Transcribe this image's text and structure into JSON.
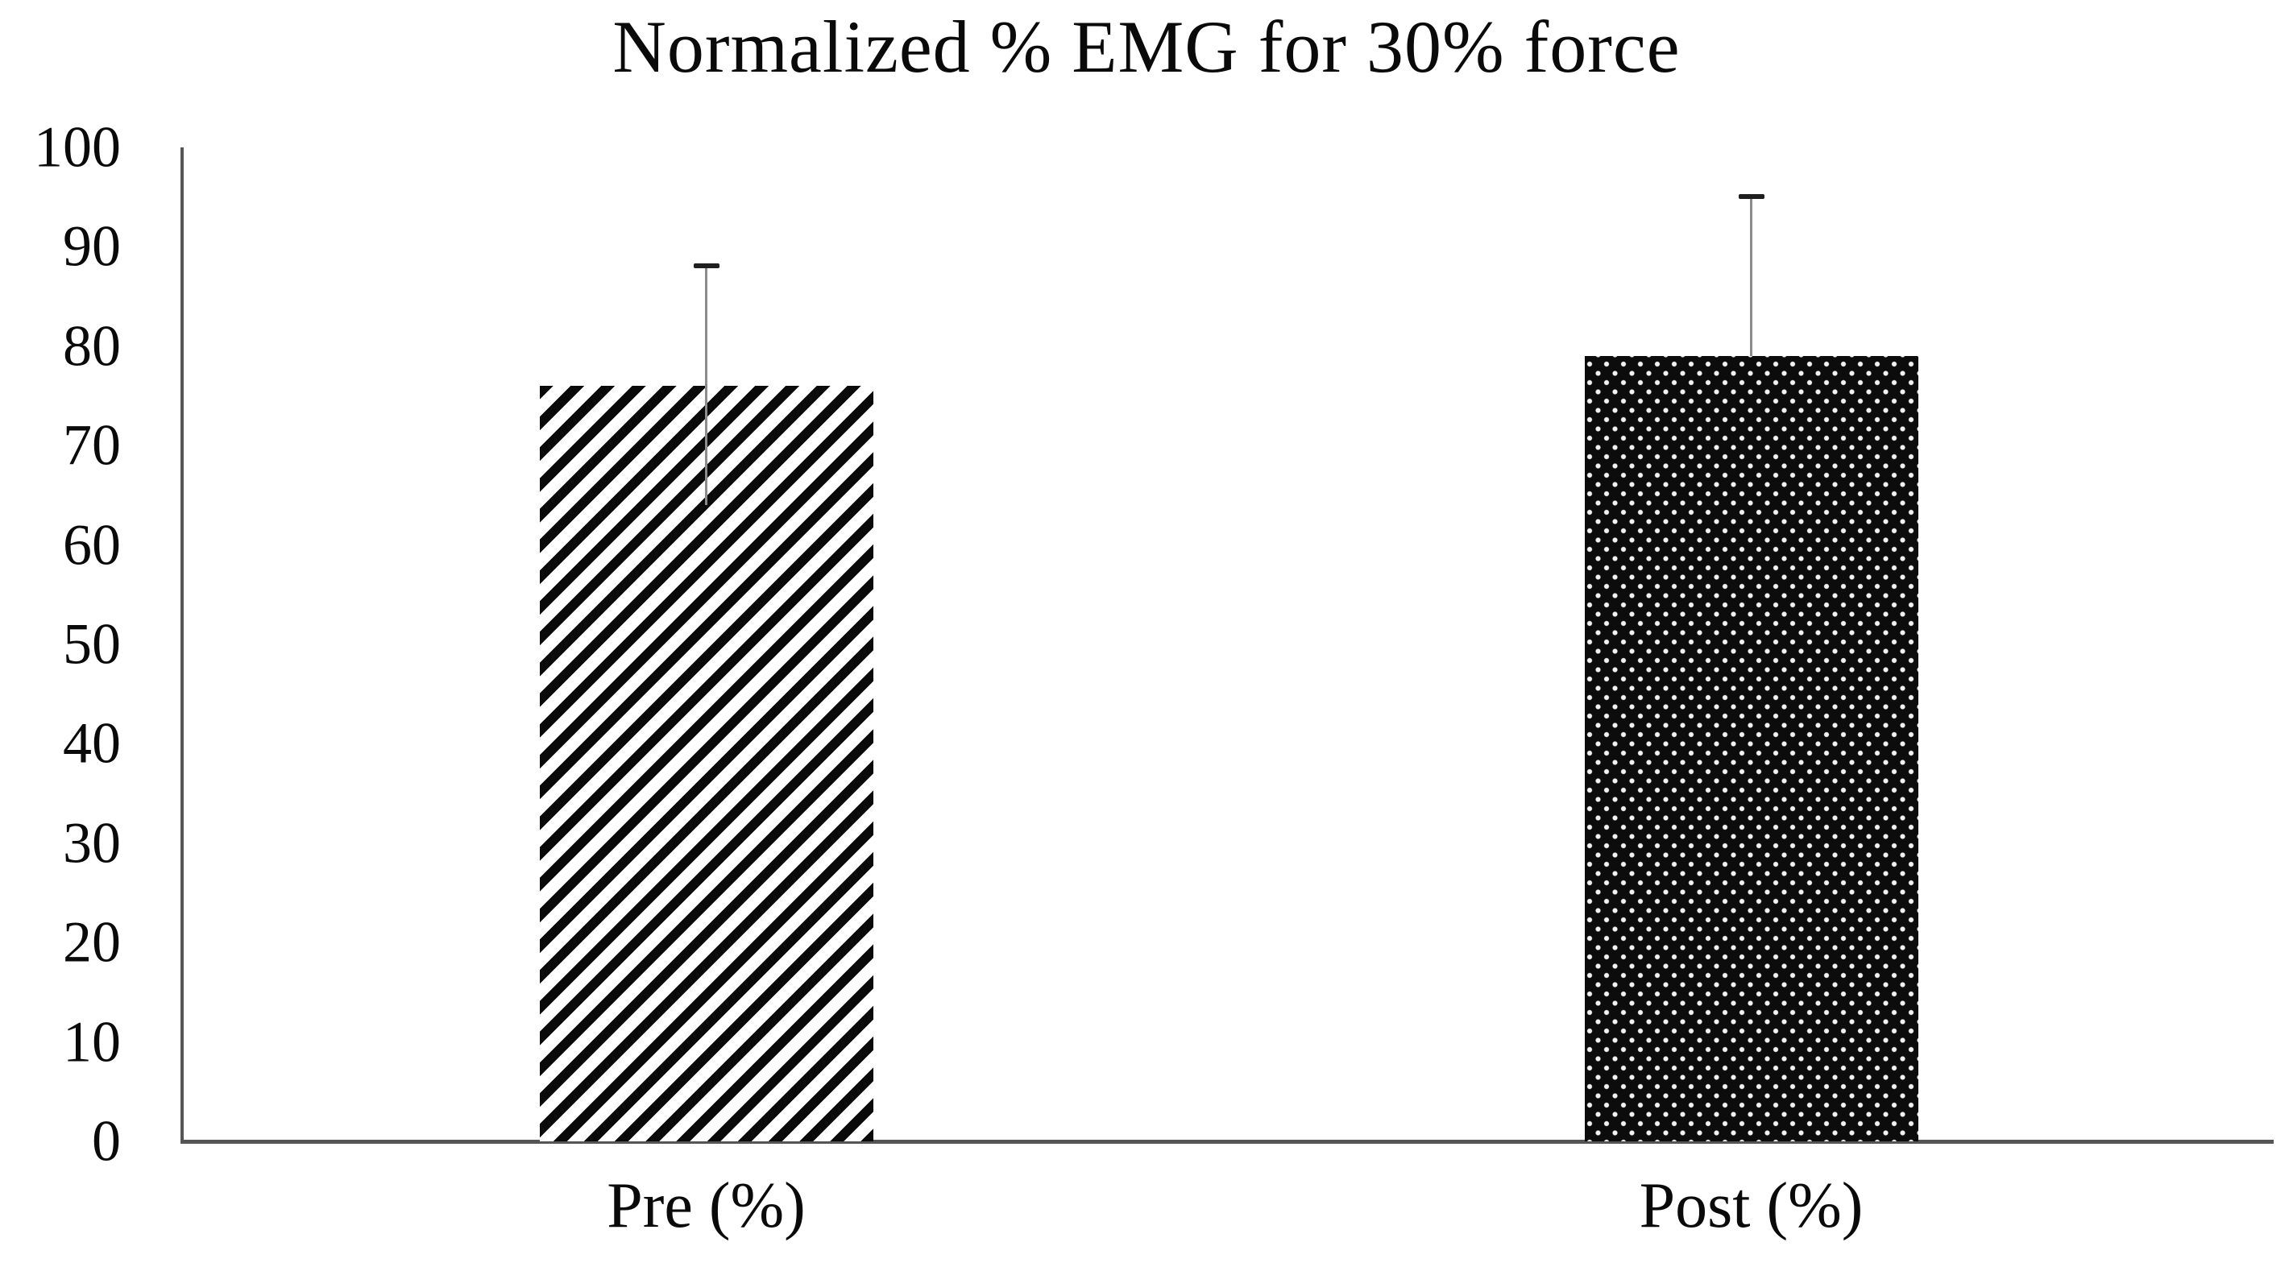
{
  "chart_data": {
    "type": "bar",
    "title": "Normalized % EMG for 30% force",
    "categories": [
      "Pre (%)",
      "Post (%)"
    ],
    "values": [
      76,
      79
    ],
    "error_up": [
      12,
      16
    ],
    "error_down": [
      12,
      null
    ],
    "ylim": [
      0,
      100
    ],
    "ytick_step": 10,
    "ytick_labels": [
      "0",
      "10",
      "20",
      "30",
      "40",
      "50",
      "60",
      "70",
      "80",
      "90",
      "100"
    ],
    "xlabel": "",
    "ylabel": "",
    "grid": false,
    "legend": null,
    "bar_patterns": [
      "diagonal-hatch",
      "black-with-white-dots"
    ],
    "colors": {
      "background": "#ffffff",
      "axis": "#555555",
      "text": "#0a0a0a",
      "hatch_foreground": "#0a0a0a",
      "hatch_background": "#ffffff",
      "dot_fill_background": "#0c0c0c",
      "dot_fill_dots": "#f2f2f2",
      "error_line": "#8c8c8c",
      "error_cap": "#1f1f1f"
    }
  }
}
